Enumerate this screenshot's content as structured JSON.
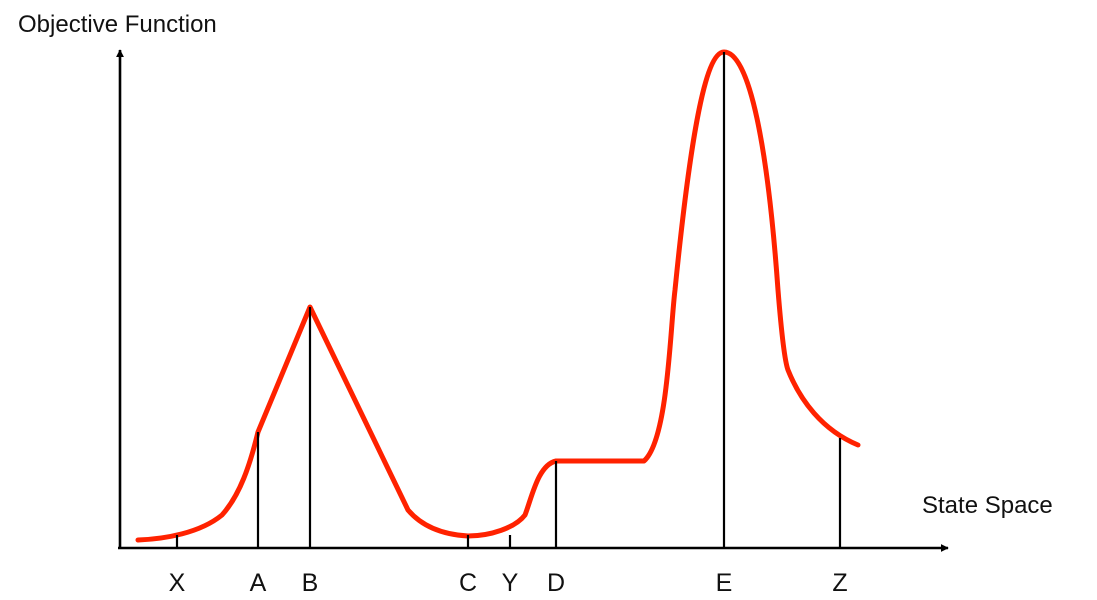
{
  "y_axis_title": "Objective Function",
  "x_axis_title": "State Space",
  "curve_color": "#ff2200",
  "axis_color": "#000000",
  "points": [
    {
      "name": "X",
      "label": "X",
      "drop_line": false
    },
    {
      "name": "A",
      "label": "A",
      "drop_line": true
    },
    {
      "name": "B",
      "label": "B",
      "drop_line": true
    },
    {
      "name": "C",
      "label": "C",
      "drop_line": false
    },
    {
      "name": "Y",
      "label": "Y",
      "drop_line": false
    },
    {
      "name": "D",
      "label": "D",
      "drop_line": true
    },
    {
      "name": "E",
      "label": "E",
      "drop_line": true
    },
    {
      "name": "Z",
      "label": "Z",
      "drop_line": true
    }
  ]
}
